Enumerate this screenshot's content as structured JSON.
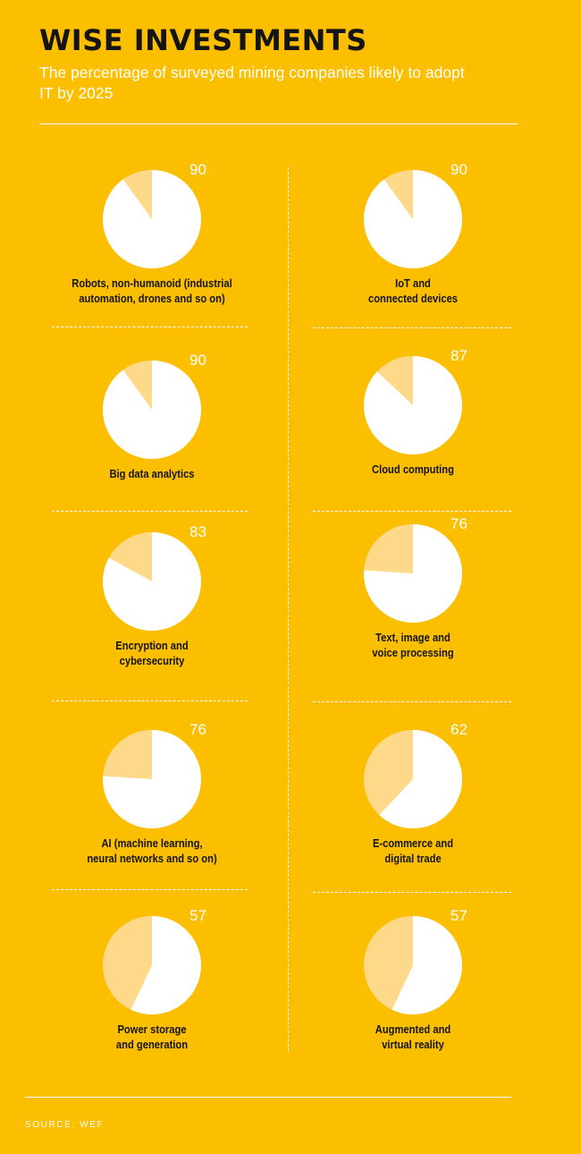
{
  "header": {
    "title": "WISE INVESTMENTS",
    "subtitle": "The percentage of surveyed mining companies likely to adopt IT by 2025"
  },
  "footer": {
    "source": "SOURCE: WEF"
  },
  "colors": {
    "background": "#FBBF00",
    "pie_main": "#FFFFFF",
    "pie_rest": "#FFD98A",
    "label": "#141414"
  },
  "chart_data": {
    "type": "pie",
    "title": "WISE INVESTMENTS",
    "subtitle": "The percentage of surveyed mining companies likely to adopt IT by 2025",
    "unit": "%",
    "items": [
      {
        "label_lines": [
          "Robots, non-humanoid (industrial",
          "automation, drones and so on)"
        ],
        "value": 90
      },
      {
        "label_lines": [
          "IoT and",
          "connected devices"
        ],
        "value": 90
      },
      {
        "label_lines": [
          "Big data analytics"
        ],
        "value": 90
      },
      {
        "label_lines": [
          "Cloud computing"
        ],
        "value": 87
      },
      {
        "label_lines": [
          "Encryption and",
          "cybersecurity"
        ],
        "value": 83
      },
      {
        "label_lines": [
          "Text, image and",
          "voice processing"
        ],
        "value": 76
      },
      {
        "label_lines": [
          "AI (machine learning,",
          "neural networks and so on)"
        ],
        "value": 76
      },
      {
        "label_lines": [
          "E-commerce and",
          "digital trade"
        ],
        "value": 62
      },
      {
        "label_lines": [
          "Power storage",
          "and generation"
        ],
        "value": 57
      },
      {
        "label_lines": [
          "Augmented and",
          "virtual reality"
        ],
        "value": 57
      }
    ]
  }
}
